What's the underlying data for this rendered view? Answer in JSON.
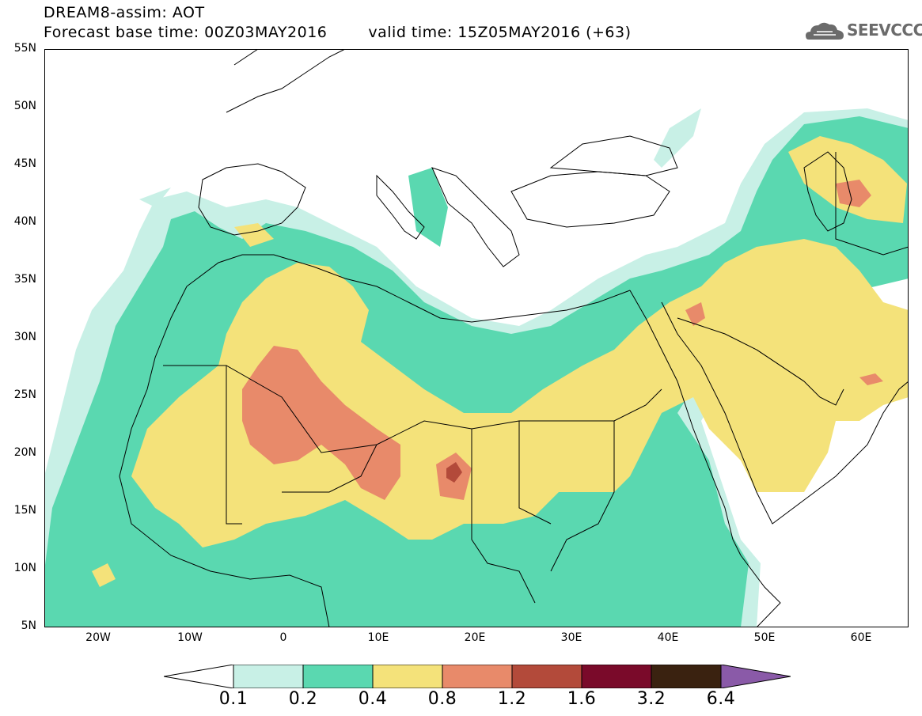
{
  "header": {
    "title_line1": "DREAM8-assim: AOT",
    "base_time": "Forecast base time: 00Z03MAY2016",
    "valid_time": "valid time: 15Z05MAY2016 (+63)"
  },
  "logo": {
    "text": "SEEVCCC",
    "icon": "cloud-icon"
  },
  "map": {
    "lat_labels": [
      "55N",
      "50N",
      "45N",
      "40N",
      "35N",
      "30N",
      "25N",
      "20N",
      "15N",
      "10N",
      "5N"
    ],
    "lon_labels": [
      "20W",
      "10W",
      "0",
      "10E",
      "20E",
      "30E",
      "40E",
      "50E",
      "60E"
    ]
  },
  "colorbar": {
    "levels": [
      "0.1",
      "0.2",
      "0.4",
      "0.8",
      "1.2",
      "1.6",
      "3.2",
      "6.4"
    ],
    "colors": [
      "#ffffff",
      "#c8f0e6",
      "#5ad8b0",
      "#f4e27a",
      "#e88a6a",
      "#b34a3a",
      "#7a0a2a",
      "#3a2210",
      "#8a5aa8"
    ]
  },
  "colors": {
    "c01": "#c8f0e6",
    "c02": "#5ad8b0",
    "c04": "#f4e27a",
    "c08": "#e88a6a",
    "c12": "#b34a3a"
  }
}
